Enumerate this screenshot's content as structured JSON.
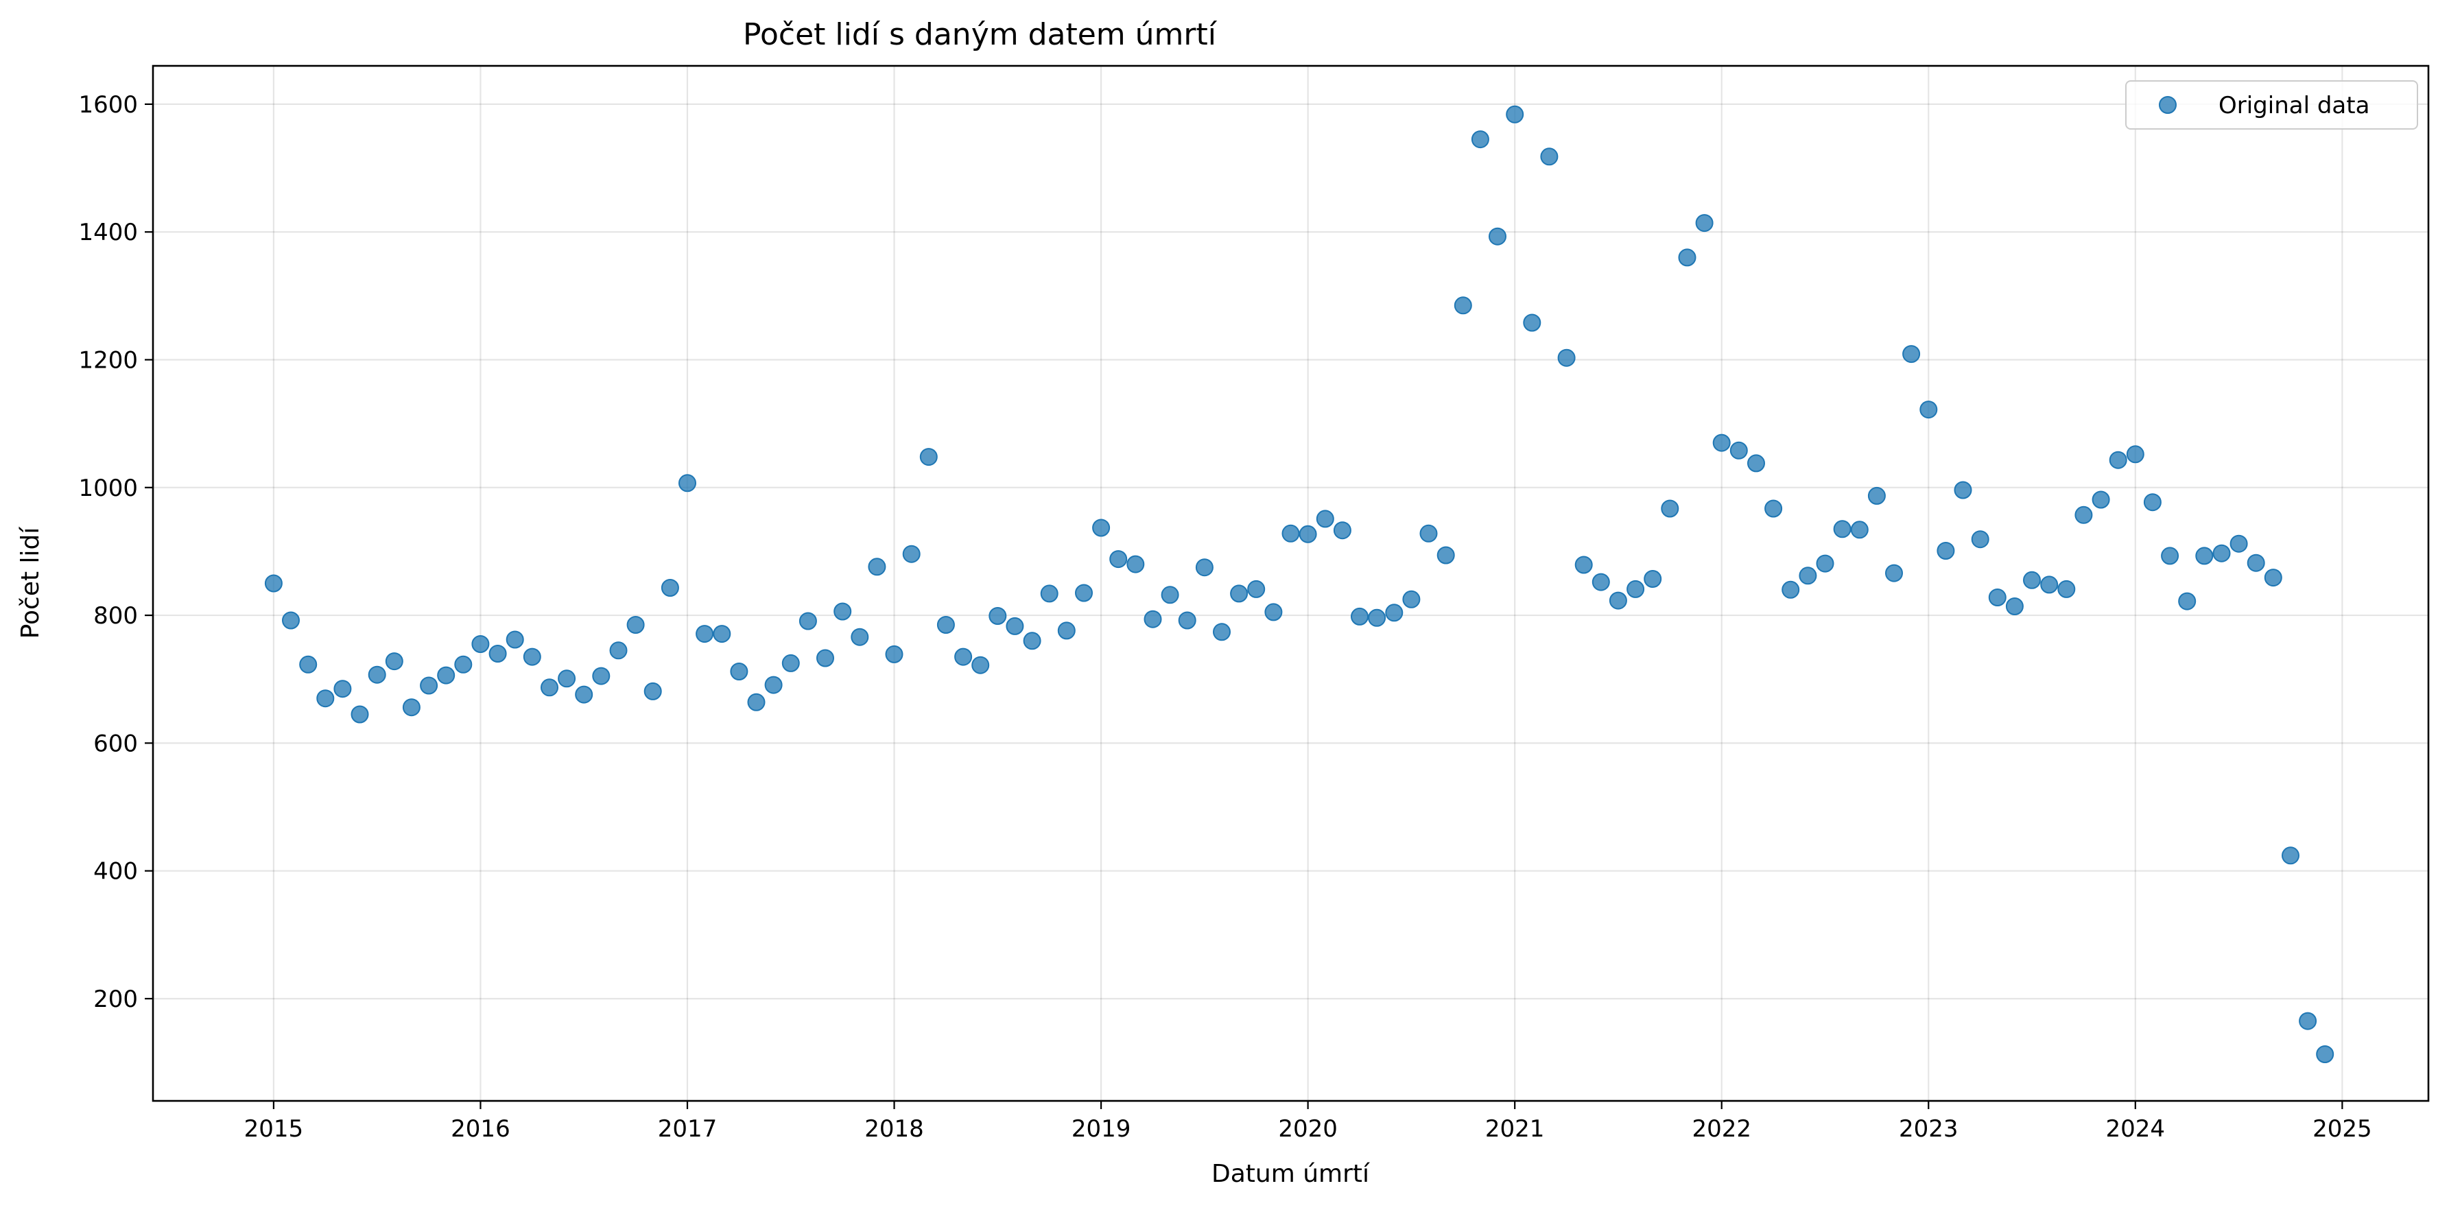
{
  "chart_data": {
    "type": "scatter",
    "title": "Počet lidí s daným datem úmrtí",
    "xlabel": "Datum úmrtí",
    "ylabel": "Počet lidí",
    "x_axis_kind": "date",
    "xlim": [
      "2014-06-01",
      "2025-06-01"
    ],
    "ylim": [
      40,
      1660
    ],
    "xticks": [
      "2015",
      "2016",
      "2017",
      "2018",
      "2019",
      "2020",
      "2021",
      "2022",
      "2023",
      "2024",
      "2025"
    ],
    "yticks": [
      200,
      400,
      600,
      800,
      1000,
      1200,
      1400,
      1600
    ],
    "grid": true,
    "legend_position": "top-right",
    "series": [
      {
        "name": "Original data",
        "color": "#1f77b4",
        "marker": "circle",
        "points": [
          [
            "2015-01",
            850
          ],
          [
            "2015-02",
            792
          ],
          [
            "2015-03",
            723
          ],
          [
            "2015-04",
            670
          ],
          [
            "2015-05",
            685
          ],
          [
            "2015-06",
            645
          ],
          [
            "2015-07",
            707
          ],
          [
            "2015-08",
            728
          ],
          [
            "2015-09",
            656
          ],
          [
            "2015-10",
            690
          ],
          [
            "2015-11",
            706
          ],
          [
            "2015-12",
            723
          ],
          [
            "2016-01",
            755
          ],
          [
            "2016-02",
            740
          ],
          [
            "2016-03",
            762
          ],
          [
            "2016-04",
            735
          ],
          [
            "2016-05",
            687
          ],
          [
            "2016-06",
            701
          ],
          [
            "2016-07",
            676
          ],
          [
            "2016-08",
            705
          ],
          [
            "2016-09",
            745
          ],
          [
            "2016-10",
            785
          ],
          [
            "2016-11",
            681
          ],
          [
            "2016-12",
            843
          ],
          [
            "2017-01",
            1007
          ],
          [
            "2017-02",
            771
          ],
          [
            "2017-03",
            771
          ],
          [
            "2017-04",
            712
          ],
          [
            "2017-05",
            664
          ],
          [
            "2017-06",
            691
          ],
          [
            "2017-07",
            725
          ],
          [
            "2017-08",
            791
          ],
          [
            "2017-09",
            733
          ],
          [
            "2017-10",
            806
          ],
          [
            "2017-11",
            766
          ],
          [
            "2017-12",
            876
          ],
          [
            "2018-01",
            739
          ],
          [
            "2018-02",
            896
          ],
          [
            "2018-03",
            1048
          ],
          [
            "2018-04",
            785
          ],
          [
            "2018-05",
            735
          ],
          [
            "2018-06",
            722
          ],
          [
            "2018-07",
            799
          ],
          [
            "2018-08",
            783
          ],
          [
            "2018-09",
            760
          ],
          [
            "2018-10",
            834
          ],
          [
            "2018-11",
            776
          ],
          [
            "2018-12",
            835
          ],
          [
            "2019-01",
            937
          ],
          [
            "2019-02",
            888
          ],
          [
            "2019-03",
            880
          ],
          [
            "2019-04",
            794
          ],
          [
            "2019-05",
            832
          ],
          [
            "2019-06",
            792
          ],
          [
            "2019-07",
            875
          ],
          [
            "2019-08",
            774
          ],
          [
            "2019-09",
            834
          ],
          [
            "2019-10",
            841
          ],
          [
            "2019-11",
            805
          ],
          [
            "2019-12",
            928
          ],
          [
            "2020-01",
            927
          ],
          [
            "2020-02",
            951
          ],
          [
            "2020-03",
            933
          ],
          [
            "2020-04",
            798
          ],
          [
            "2020-05",
            796
          ],
          [
            "2020-06",
            804
          ],
          [
            "2020-07",
            825
          ],
          [
            "2020-08",
            928
          ],
          [
            "2020-09",
            894
          ],
          [
            "2020-10",
            1285
          ],
          [
            "2020-11",
            1545
          ],
          [
            "2020-12",
            1393
          ],
          [
            "2021-01",
            1584
          ],
          [
            "2021-02",
            1258
          ],
          [
            "2021-03",
            1518
          ],
          [
            "2021-04",
            1203
          ],
          [
            "2021-05",
            879
          ],
          [
            "2021-06",
            852
          ],
          [
            "2021-07",
            823
          ],
          [
            "2021-08",
            841
          ],
          [
            "2021-09",
            857
          ],
          [
            "2021-10",
            967
          ],
          [
            "2021-11",
            1360
          ],
          [
            "2021-12",
            1414
          ],
          [
            "2022-01",
            1070
          ],
          [
            "2022-02",
            1058
          ],
          [
            "2022-03",
            1038
          ],
          [
            "2022-04",
            967
          ],
          [
            "2022-05",
            840
          ],
          [
            "2022-06",
            862
          ],
          [
            "2022-07",
            881
          ],
          [
            "2022-08",
            935
          ],
          [
            "2022-09",
            934
          ],
          [
            "2022-10",
            987
          ],
          [
            "2022-11",
            866
          ],
          [
            "2022-12",
            1209
          ],
          [
            "2023-01",
            1122
          ],
          [
            "2023-02",
            901
          ],
          [
            "2023-03",
            996
          ],
          [
            "2023-04",
            919
          ],
          [
            "2023-05",
            828
          ],
          [
            "2023-06",
            814
          ],
          [
            "2023-07",
            855
          ],
          [
            "2023-08",
            848
          ],
          [
            "2023-09",
            841
          ],
          [
            "2023-10",
            957
          ],
          [
            "2023-11",
            981
          ],
          [
            "2023-12",
            1043
          ],
          [
            "2024-01",
            1052
          ],
          [
            "2024-02",
            977
          ],
          [
            "2024-03",
            893
          ],
          [
            "2024-04",
            822
          ],
          [
            "2024-05",
            893
          ],
          [
            "2024-06",
            897
          ],
          [
            "2024-07",
            912
          ],
          [
            "2024-08",
            882
          ],
          [
            "2024-09",
            859
          ],
          [
            "2024-10",
            424
          ],
          [
            "2024-11",
            165
          ],
          [
            "2024-12",
            113
          ]
        ]
      }
    ]
  }
}
